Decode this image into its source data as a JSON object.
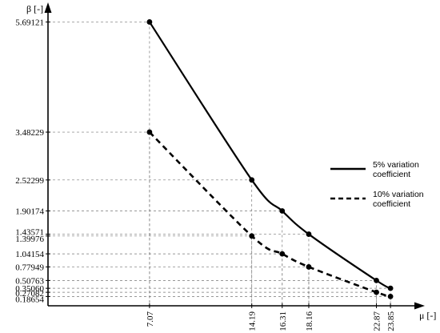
{
  "chart_data": {
    "type": "line",
    "xlabel": "μ [-]",
    "ylabel": "β [-]",
    "x_ticks": [
      "7.07",
      "14.19",
      "16.31",
      "18.16",
      "22.87",
      "23.85"
    ],
    "y_ticks": [
      "5.69121",
      "3.48229",
      "2.52299",
      "1.90174",
      "1.43571",
      "1.39976",
      "1.04154",
      "0.77949",
      "0.50763",
      "0.35060",
      "0.27082",
      "0.18654"
    ],
    "series": [
      {
        "name": "5% variation coefficient",
        "line_style": "solid",
        "x": [
          7.07,
          14.19,
          16.31,
          18.16,
          22.87,
          23.85
        ],
        "y": [
          5.69121,
          2.52299,
          1.90174,
          1.43571,
          0.50763,
          0.3506
        ]
      },
      {
        "name": "10% variation coefficient",
        "line_style": "dashed",
        "x": [
          7.07,
          14.19,
          16.31,
          18.16,
          22.87,
          23.85
        ],
        "y": [
          3.48229,
          1.39976,
          1.04154,
          0.77949,
          0.27082,
          0.18654
        ]
      }
    ],
    "legend": {
      "position": "right",
      "items": [
        {
          "line1": "5%  variation",
          "line2": "coefficient",
          "style": "solid"
        },
        {
          "line1": "10%  variation",
          "line2": "coefficient",
          "style": "dashed"
        }
      ]
    },
    "xlim": [
      0,
      25.8
    ],
    "ylim": [
      0,
      6.15
    ],
    "grid": false,
    "guide_lines": true,
    "color": "#000000"
  }
}
